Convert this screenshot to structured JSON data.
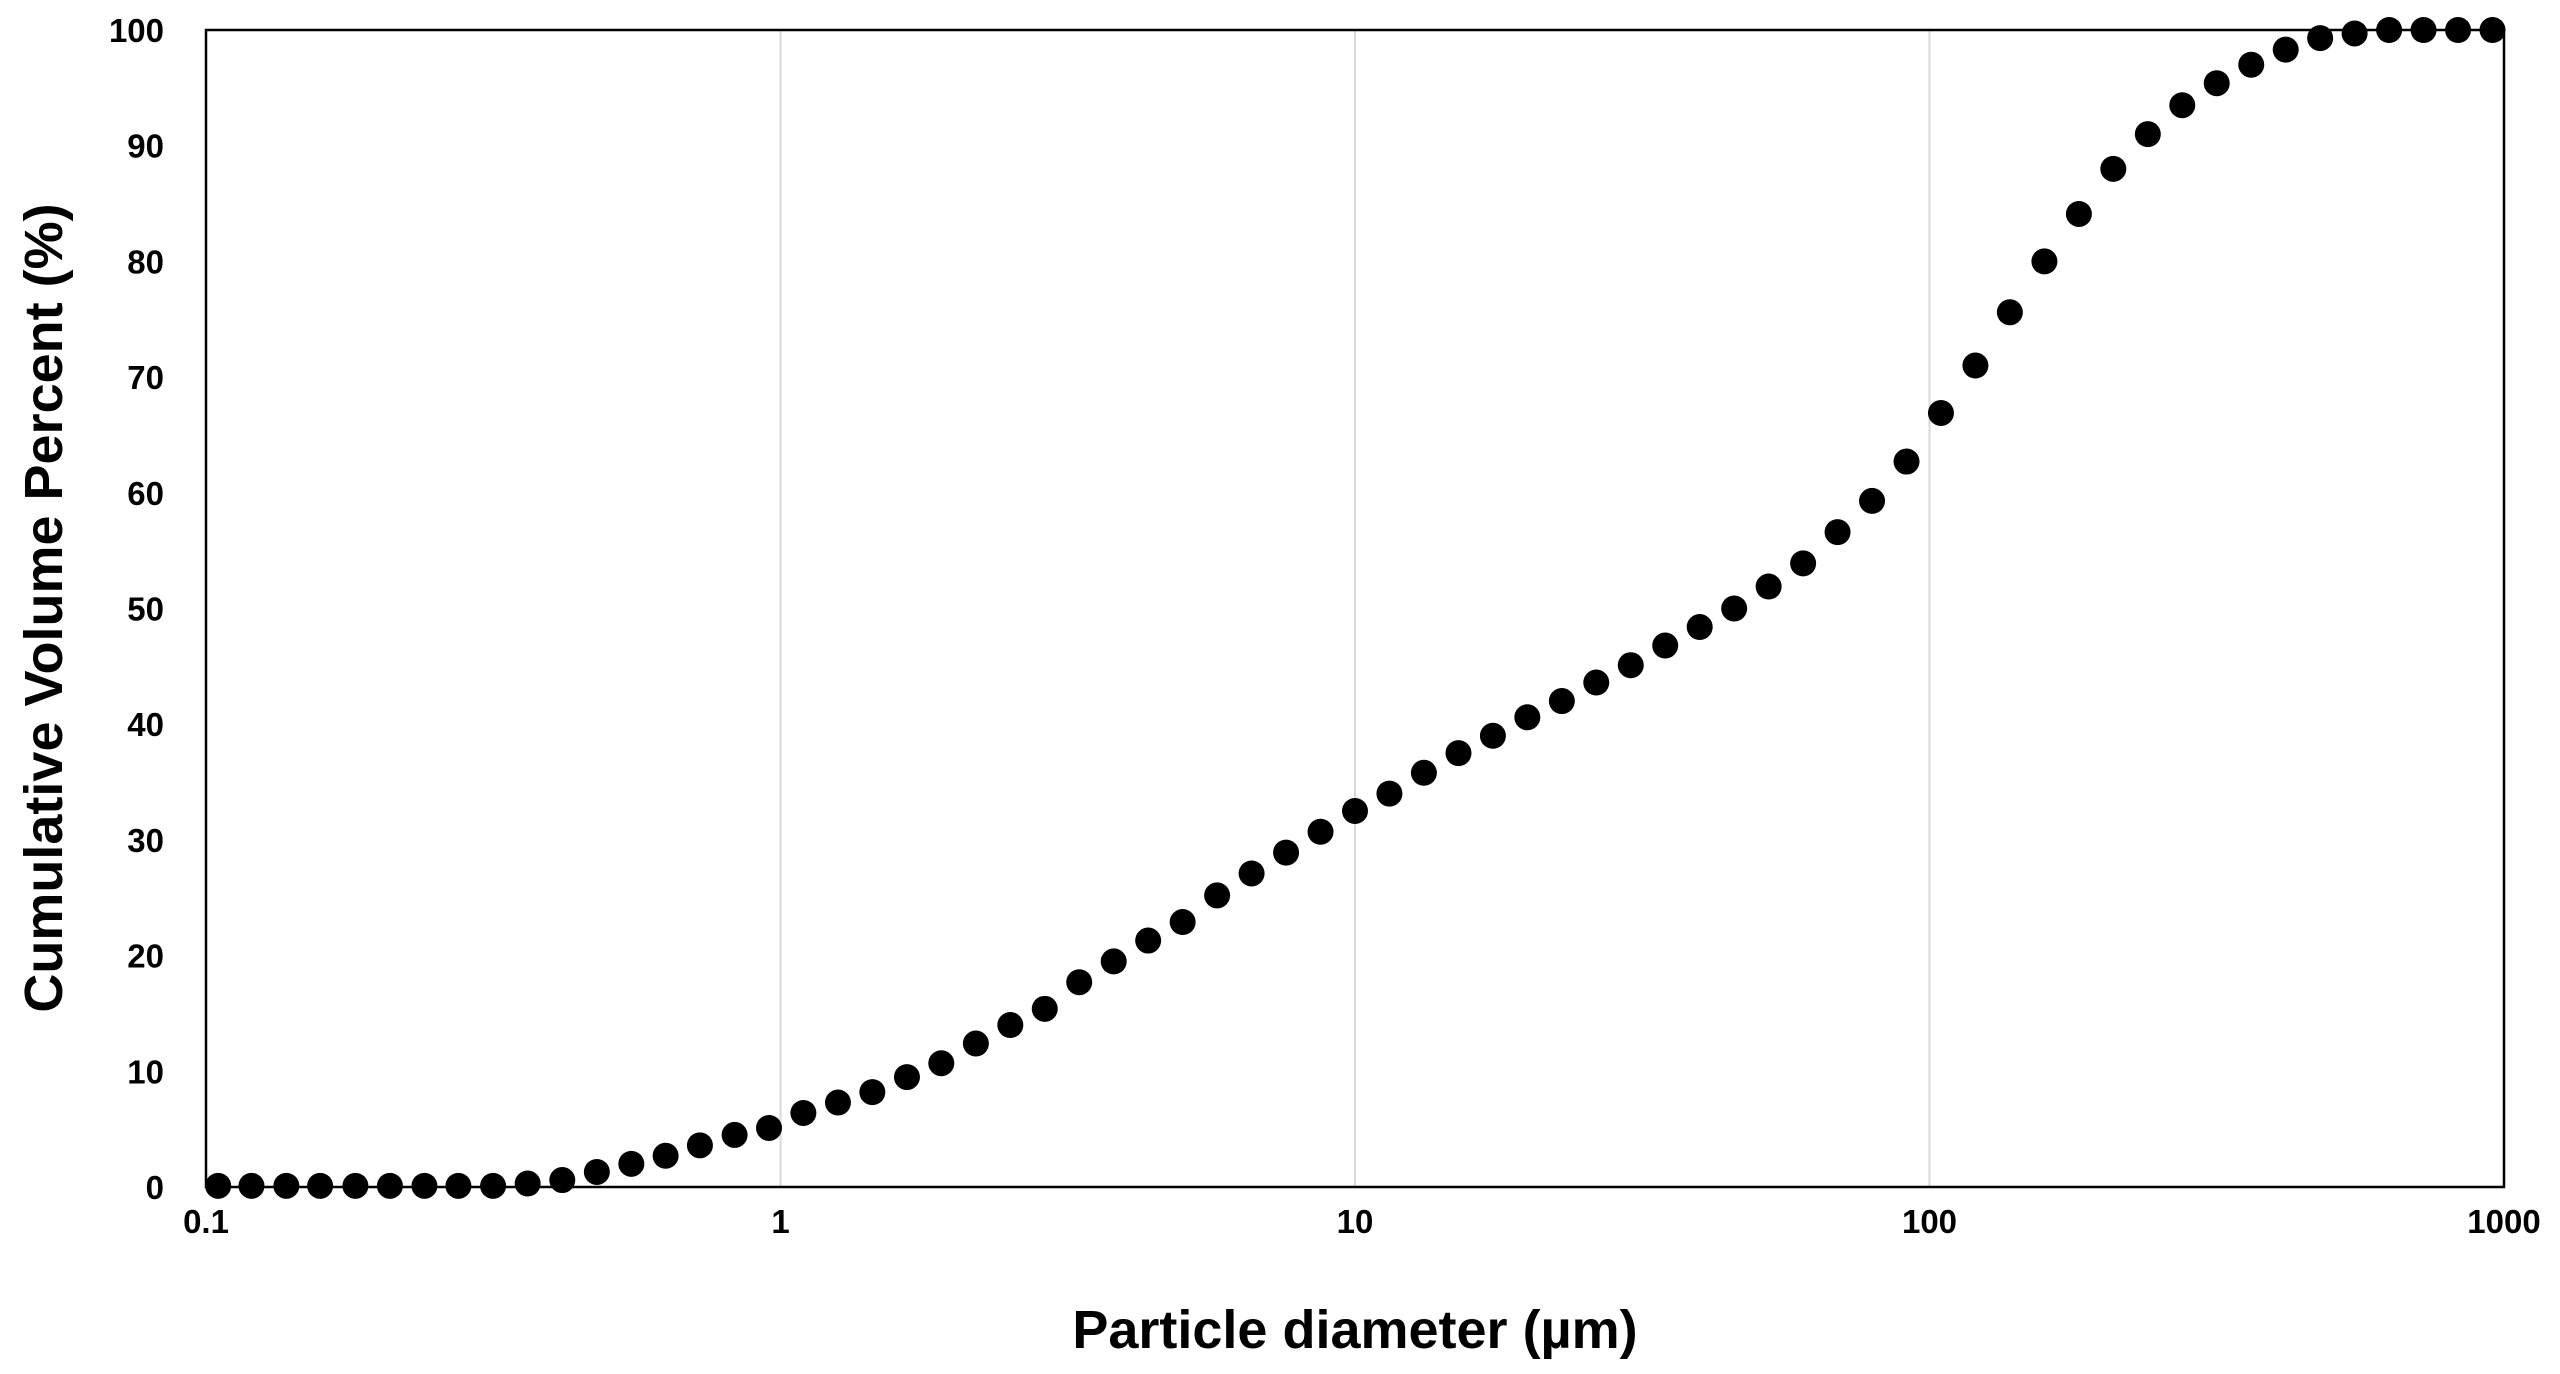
{
  "chart_data": {
    "type": "scatter",
    "title": "",
    "xlabel": "Particle diameter (µm)",
    "ylabel": "Cumulative Volume Percent (%)",
    "xscale": "log",
    "xlim": [
      0.1,
      1000
    ],
    "ylim": [
      0,
      100
    ],
    "x_ticks": [
      0.1,
      1,
      10,
      100,
      1000
    ],
    "x_tick_labels": [
      "0.1",
      "1",
      "10",
      "100",
      "1000"
    ],
    "y_ticks": [
      0,
      10,
      20,
      30,
      40,
      50,
      60,
      70,
      80,
      90,
      100
    ],
    "y_tick_labels": [
      "0",
      "10",
      "20",
      "30",
      "40",
      "50",
      "60",
      "70",
      "80",
      "90",
      "100"
    ],
    "grid": "vertical",
    "legend": "none",
    "marker_color": "#000000",
    "series": [
      {
        "name": "Cumulative volume",
        "x": [
          0.105,
          0.12,
          0.138,
          0.158,
          0.182,
          0.209,
          0.24,
          0.275,
          0.316,
          0.363,
          0.417,
          0.479,
          0.55,
          0.631,
          0.724,
          0.832,
          0.955,
          1.096,
          1.259,
          1.445,
          1.66,
          1.905,
          2.188,
          2.512,
          2.884,
          3.311,
          3.802,
          4.365,
          5.012,
          5.754,
          6.607,
          7.586,
          8.71,
          10.0,
          11.48,
          13.18,
          15.14,
          17.38,
          19.95,
          22.91,
          26.3,
          30.2,
          34.67,
          39.81,
          45.71,
          52.48,
          60.26,
          69.18,
          79.43,
          91.2,
          104.7,
          120.2,
          138.0,
          158.5,
          182.0,
          208.9,
          239.9,
          275.4,
          316.2,
          363.1,
          416.9,
          478.6,
          549.5,
          631.0,
          724.4,
          831.8,
          955.0
        ],
        "y": [
          0.1,
          0.1,
          0.1,
          0.1,
          0.1,
          0.1,
          0.1,
          0.1,
          0.1,
          0.3,
          0.6,
          1.3,
          2.0,
          2.7,
          3.6,
          4.5,
          5.1,
          6.4,
          7.3,
          8.2,
          9.5,
          10.7,
          12.4,
          14.0,
          15.4,
          17.7,
          19.5,
          21.3,
          22.9,
          25.2,
          27.1,
          28.9,
          30.7,
          32.5,
          34.0,
          35.8,
          37.5,
          39.0,
          40.6,
          42.0,
          43.6,
          45.1,
          46.8,
          48.4,
          50.0,
          51.9,
          53.9,
          56.6,
          59.3,
          62.7,
          66.9,
          71.0,
          75.6,
          80.0,
          84.1,
          88.0,
          91.0,
          93.5,
          95.4,
          97.0,
          98.3,
          99.3,
          99.7,
          100.0,
          100.0,
          100.0,
          100.0
        ]
      }
    ]
  }
}
